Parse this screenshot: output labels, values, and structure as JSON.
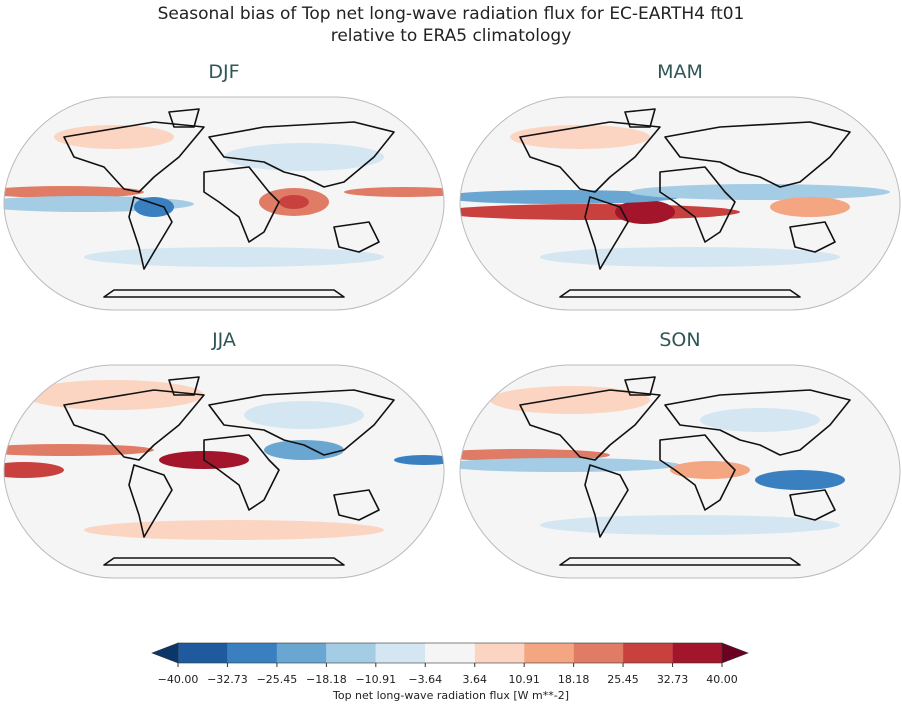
{
  "title_lines": [
    "Seasonal bias of Top net long-wave radiation flux for EC-EARTH4 ft01",
    "relative to ERA5 climatology"
  ],
  "panels": [
    {
      "title": "DJF"
    },
    {
      "title": "MAM"
    },
    {
      "title": "JJA"
    },
    {
      "title": "SON"
    }
  ],
  "colorbar": {
    "label": "Top net long-wave radiation flux [W m**-2]",
    "ticks": [
      {
        "value": -40,
        "label": "−40.00"
      },
      {
        "value": -32.73,
        "label": "−32.73"
      },
      {
        "value": -25.45,
        "label": "−25.45"
      },
      {
        "value": -18.18,
        "label": "−18.18"
      },
      {
        "value": -10.91,
        "label": "−10.91"
      },
      {
        "value": -3.64,
        "label": "−3.64"
      },
      {
        "value": 3.64,
        "label": "3.64"
      },
      {
        "value": 10.91,
        "label": "10.91"
      },
      {
        "value": 18.18,
        "label": "18.18"
      },
      {
        "value": 25.45,
        "label": "25.45"
      },
      {
        "value": 32.73,
        "label": "32.73"
      },
      {
        "value": 40,
        "label": "40.00"
      }
    ],
    "colors": [
      "#1f5a9e",
      "#3a7fc0",
      "#6aa6d2",
      "#a4cce4",
      "#d4e6f1",
      "#f5f5f5",
      "#fbd5c1",
      "#f4a582",
      "#e07c66",
      "#c9413f",
      "#a3152a"
    ],
    "under_color": "#0b3768",
    "over_color": "#6b0020"
  }
}
